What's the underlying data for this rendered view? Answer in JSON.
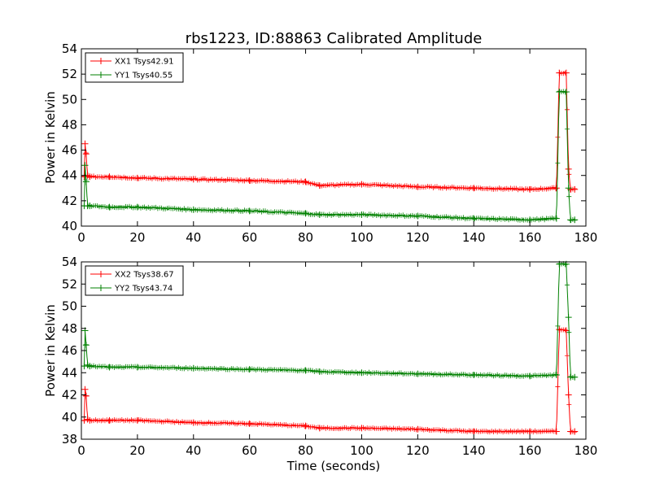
{
  "title": "rbs1223, ID:88863 Calibrated Amplitude",
  "colors": {
    "xx": "#ff0000",
    "yy": "#008000"
  },
  "chart_data": [
    {
      "type": "line",
      "xlabel": "",
      "ylabel": "Power in Kelvin",
      "xlim": [
        0,
        180
      ],
      "ylim": [
        40,
        54
      ],
      "xticks": [
        "0",
        "20",
        "40",
        "60",
        "80",
        "100",
        "120",
        "140",
        "160",
        "180"
      ],
      "yticks": [
        "40",
        "42",
        "44",
        "46",
        "48",
        "50",
        "52",
        "54"
      ],
      "legend_position": "top-left",
      "series": [
        {
          "name": "XX1 Tsys42.91",
          "color": "#ff0000",
          "x": [
            1,
            1.3,
            1.7,
            2.2,
            3,
            10,
            20,
            40,
            60,
            80,
            85,
            100,
            120,
            140,
            160,
            169.5,
            170.5,
            173,
            173.8,
            174.5,
            176
          ],
          "y": [
            43.9,
            46.5,
            45.7,
            44.0,
            43.9,
            43.9,
            43.8,
            43.7,
            43.6,
            43.5,
            43.2,
            43.3,
            43.1,
            43.0,
            42.9,
            43.0,
            52.1,
            52.1,
            44.5,
            42.9,
            42.9
          ]
        },
        {
          "name": "YY1 Tsys40.55",
          "color": "#008000",
          "x": [
            1,
            1.3,
            1.7,
            2.2,
            3,
            10,
            20,
            40,
            60,
            80,
            85,
            100,
            120,
            140,
            160,
            169.5,
            170.5,
            173,
            173.8,
            174.5,
            176
          ],
          "y": [
            41.6,
            44.8,
            43.5,
            41.6,
            41.6,
            41.5,
            41.5,
            41.3,
            41.2,
            41.0,
            40.9,
            40.9,
            40.8,
            40.6,
            40.5,
            40.6,
            50.6,
            50.6,
            43.0,
            40.5,
            40.5
          ]
        }
      ]
    },
    {
      "type": "line",
      "xlabel": "Time (seconds)",
      "ylabel": "Power in Kelvin",
      "xlim": [
        0,
        180
      ],
      "ylim": [
        38,
        54
      ],
      "xticks": [
        "0",
        "20",
        "40",
        "60",
        "80",
        "100",
        "120",
        "140",
        "160",
        "180"
      ],
      "yticks": [
        "38",
        "40",
        "42",
        "44",
        "46",
        "48",
        "50",
        "52",
        "54"
      ],
      "legend_position": "top-left",
      "series": [
        {
          "name": "XX2 Tsys38.67",
          "color": "#ff0000",
          "x": [
            1,
            1.3,
            1.7,
            2.2,
            3,
            10,
            20,
            40,
            60,
            80,
            85,
            100,
            120,
            140,
            160,
            169.5,
            170.5,
            173,
            173.8,
            174.5,
            176
          ],
          "y": [
            39.7,
            42.5,
            41.9,
            39.8,
            39.7,
            39.7,
            39.7,
            39.5,
            39.4,
            39.2,
            39.0,
            39.0,
            38.9,
            38.7,
            38.7,
            38.7,
            47.9,
            47.8,
            42.0,
            38.7,
            38.7
          ]
        },
        {
          "name": "YY2 Tsys43.74",
          "color": "#008000",
          "x": [
            1,
            1.3,
            1.7,
            2.2,
            3,
            10,
            20,
            40,
            60,
            80,
            85,
            100,
            120,
            140,
            160,
            169.5,
            170.5,
            173,
            173.8,
            174.5,
            176
          ],
          "y": [
            44.6,
            47.8,
            46.5,
            44.7,
            44.6,
            44.5,
            44.5,
            44.4,
            44.3,
            44.2,
            44.1,
            44.0,
            43.9,
            43.8,
            43.7,
            43.8,
            53.8,
            53.8,
            49.0,
            43.6,
            43.6
          ]
        }
      ]
    }
  ]
}
